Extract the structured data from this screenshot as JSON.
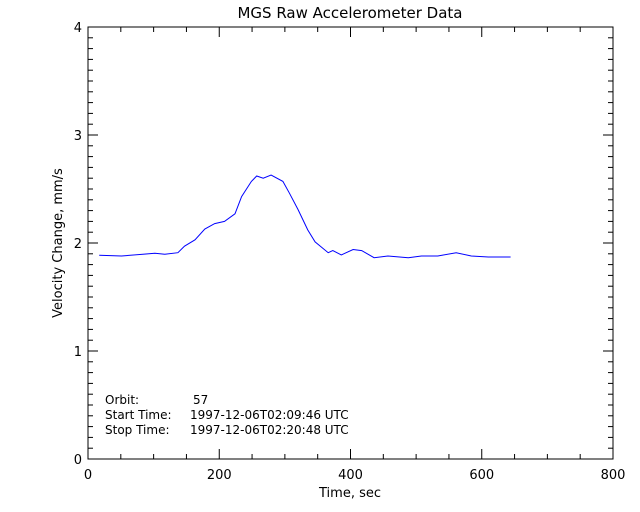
{
  "chart_data": {
    "type": "line",
    "title": "MGS Raw Accelerometer Data",
    "xlabel": "Time, sec",
    "ylabel": "Velocity Change, mm/s",
    "xlim": [
      0,
      800
    ],
    "ylim": [
      0,
      4
    ],
    "xticks": [
      "0",
      "200",
      "400",
      "600",
      "800"
    ],
    "yticks": [
      "0",
      "1",
      "2",
      "3",
      "4"
    ],
    "grid": false,
    "series": [
      {
        "name": "velocity change",
        "color": "#0000ff",
        "x": [
          17,
          51,
          102,
          117,
          137,
          147,
          163,
          178,
          193,
          208,
          224,
          234,
          249,
          257,
          267,
          279,
          297,
          307,
          320,
          335,
          346,
          366,
          373,
          386,
          404,
          417,
          436,
          457,
          488,
          508,
          533,
          561,
          584,
          610,
          644
        ],
        "y": [
          1.886,
          1.88,
          1.905,
          1.895,
          1.91,
          1.97,
          2.03,
          2.13,
          2.18,
          2.2,
          2.27,
          2.43,
          2.57,
          2.62,
          2.6,
          2.63,
          2.57,
          2.46,
          2.31,
          2.12,
          2.01,
          1.91,
          1.93,
          1.89,
          1.94,
          1.93,
          1.864,
          1.88,
          1.864,
          1.88,
          1.88,
          1.91,
          1.88,
          1.87,
          1.87
        ]
      }
    ],
    "annotations": {
      "orbit_label": "Orbit:",
      "orbit_value": "57",
      "start_label": "Start Time:",
      "start_value": "1997-12-06T02:09:46 UTC",
      "stop_label": "Stop Time:",
      "stop_value": "1997-12-06T02:20:48 UTC"
    }
  }
}
